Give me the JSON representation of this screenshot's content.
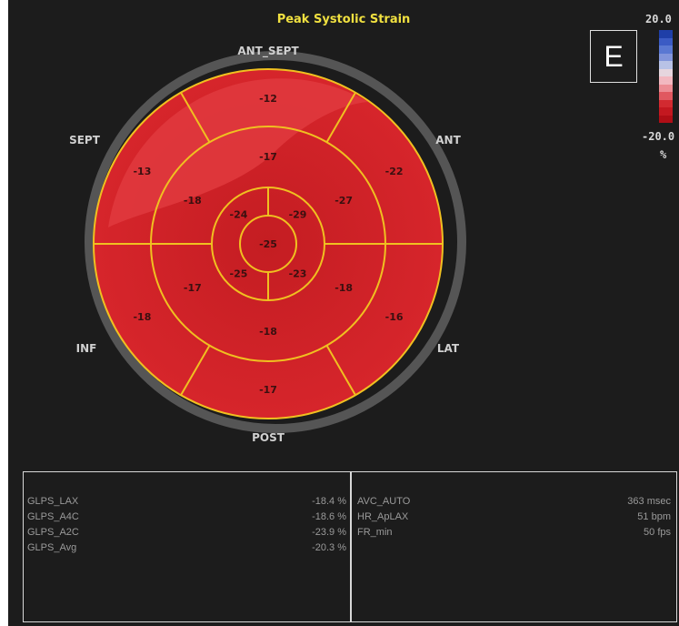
{
  "title": "Peak Systolic Strain",
  "panel_label": "E",
  "color_scale": {
    "max_label": "20.0",
    "min_label": "-20.0",
    "unit": "%",
    "colors": [
      "#1f3fa8",
      "#3b5bc4",
      "#5a78d2",
      "#8295db",
      "#b8c2e6",
      "#e6d6de",
      "#f2b8c0",
      "#ec8c94",
      "#e05860",
      "#d22a30",
      "#c41820",
      "#b00e16"
    ]
  },
  "wall_labels": {
    "ant_sept": "ANT_SEPT",
    "ant": "ANT",
    "lat": "LAT",
    "post": "POST",
    "inf": "INF",
    "sept": "SEPT"
  },
  "segments": {
    "basal": [
      {
        "wall": "ANT_SEPT",
        "value": "-12"
      },
      {
        "wall": "ANT",
        "value": "-22"
      },
      {
        "wall": "LAT",
        "value": "-16"
      },
      {
        "wall": "POST",
        "value": "-17"
      },
      {
        "wall": "INF",
        "value": "-18"
      },
      {
        "wall": "SEPT",
        "value": "-13"
      }
    ],
    "mid": [
      {
        "wall": "ANT_SEPT",
        "value": "-17"
      },
      {
        "wall": "ANT",
        "value": "-27"
      },
      {
        "wall": "LAT",
        "value": "-18"
      },
      {
        "wall": "POST",
        "value": "-18"
      },
      {
        "wall": "INF",
        "value": "-17"
      },
      {
        "wall": "SEPT",
        "value": "-18"
      }
    ],
    "apical": [
      {
        "wall": "ANT",
        "value": "-29"
      },
      {
        "wall": "LAT",
        "value": "-23"
      },
      {
        "wall": "INF",
        "value": "-25"
      },
      {
        "wall": "SEPT",
        "value": "-24"
      }
    ],
    "apex": {
      "value": "-25"
    }
  },
  "glps_table": [
    {
      "label": "GLPS_LAX",
      "value": "-18.4 %"
    },
    {
      "label": "GLPS_A4C",
      "value": "-18.6 %"
    },
    {
      "label": "GLPS_A2C",
      "value": "-23.9 %"
    },
    {
      "label": "GLPS_Avg",
      "value": "-20.3 %"
    }
  ],
  "acq_table": [
    {
      "label": "AVC_AUTO",
      "value": "363 msec"
    },
    {
      "label": "HR_ApLAX",
      "value": "51 bpm"
    },
    {
      "label": "FR_min",
      "value": "50 fps"
    }
  ]
}
